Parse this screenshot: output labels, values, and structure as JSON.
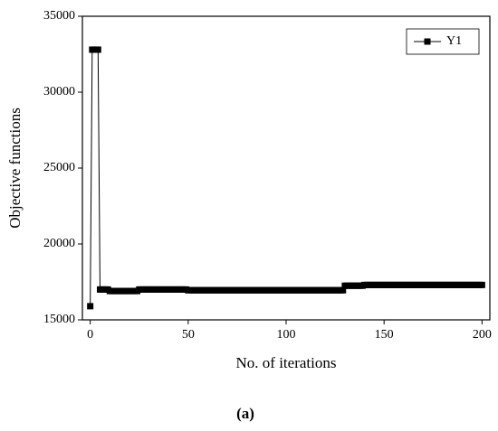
{
  "chart_data": {
    "type": "line",
    "xlabel": "No. of iterations",
    "ylabel": "Objective functions",
    "caption": "(a)",
    "xlim": [
      -4,
      204
    ],
    "ylim": [
      15000,
      35000
    ],
    "xticks": [
      0,
      50,
      100,
      150,
      200
    ],
    "yticks": [
      15000,
      20000,
      25000,
      30000,
      35000
    ],
    "legend": "upper right",
    "x": [
      0,
      1,
      2,
      3,
      4,
      5,
      6,
      7,
      8,
      9,
      10,
      11,
      12,
      13,
      14,
      15,
      16,
      17,
      18,
      19,
      20,
      21,
      22,
      23,
      24,
      25,
      26,
      27,
      28,
      29,
      30,
      31,
      32,
      33,
      34,
      35,
      36,
      37,
      38,
      39,
      40,
      41,
      42,
      43,
      44,
      45,
      46,
      47,
      48,
      49,
      50,
      51,
      52,
      53,
      54,
      55,
      56,
      57,
      58,
      59,
      60,
      61,
      62,
      63,
      64,
      65,
      66,
      67,
      68,
      69,
      70,
      71,
      72,
      73,
      74,
      75,
      76,
      77,
      78,
      79,
      80,
      81,
      82,
      83,
      84,
      85,
      86,
      87,
      88,
      89,
      90,
      91,
      92,
      93,
      94,
      95,
      96,
      97,
      98,
      99,
      100,
      101,
      102,
      103,
      104,
      105,
      106,
      107,
      108,
      109,
      110,
      111,
      112,
      113,
      114,
      115,
      116,
      117,
      118,
      119,
      120,
      121,
      122,
      123,
      124,
      125,
      126,
      127,
      128,
      129,
      130,
      131,
      132,
      133,
      134,
      135,
      136,
      137,
      138,
      139,
      140,
      141,
      142,
      143,
      144,
      145,
      146,
      147,
      148,
      149,
      150,
      151,
      152,
      153,
      154,
      155,
      156,
      157,
      158,
      159,
      160,
      161,
      162,
      163,
      164,
      165,
      166,
      167,
      168,
      169,
      170,
      171,
      172,
      173,
      174,
      175,
      176,
      177,
      178,
      179,
      180,
      181,
      182,
      183,
      184,
      185,
      186,
      187,
      188,
      189,
      190,
      191,
      192,
      193,
      194,
      195,
      196,
      197,
      198,
      199,
      200
    ],
    "series": [
      {
        "name": "Y1",
        "color": "#000000",
        "values": [
          15900,
          32800,
          32800,
          32800,
          32800,
          17000,
          17000,
          17000,
          17000,
          17000,
          16900,
          16900,
          16900,
          16900,
          16900,
          16900,
          16900,
          16900,
          16900,
          16900,
          16900,
          16900,
          16900,
          16900,
          16900,
          17000,
          17000,
          17000,
          17000,
          17000,
          17000,
          17000,
          17000,
          17000,
          17000,
          17000,
          17000,
          17000,
          17000,
          17000,
          17000,
          17000,
          17000,
          17000,
          17000,
          17000,
          17000,
          17000,
          17000,
          17000,
          16950,
          16950,
          16950,
          16950,
          16950,
          16950,
          16950,
          16950,
          16950,
          16950,
          16950,
          16950,
          16950,
          16950,
          16950,
          16950,
          16950,
          16950,
          16950,
          16950,
          16950,
          16950,
          16950,
          16950,
          16950,
          16950,
          16950,
          16950,
          16950,
          16950,
          16950,
          16950,
          16950,
          16950,
          16950,
          16950,
          16950,
          16950,
          16950,
          16950,
          16950,
          16950,
          16950,
          16950,
          16950,
          16950,
          16950,
          16950,
          16950,
          16950,
          16950,
          16950,
          16950,
          16950,
          16950,
          16950,
          16950,
          16950,
          16950,
          16950,
          16950,
          16950,
          16950,
          16950,
          16950,
          16950,
          16950,
          16950,
          16950,
          16950,
          16950,
          16950,
          16950,
          16950,
          16950,
          16950,
          16950,
          16950,
          16950,
          16950,
          17250,
          17250,
          17250,
          17250,
          17250,
          17250,
          17250,
          17250,
          17250,
          17250,
          17300,
          17300,
          17300,
          17300,
          17300,
          17300,
          17300,
          17300,
          17300,
          17300,
          17300,
          17300,
          17300,
          17300,
          17300,
          17300,
          17300,
          17300,
          17300,
          17300,
          17300,
          17300,
          17300,
          17300,
          17300,
          17300,
          17300,
          17300,
          17300,
          17300,
          17300,
          17300,
          17300,
          17300,
          17300,
          17300,
          17300,
          17300,
          17300,
          17300,
          17300,
          17300,
          17300,
          17300,
          17300,
          17300,
          17300,
          17300,
          17300,
          17300,
          17300,
          17300,
          17300,
          17300,
          17300,
          17300,
          17300,
          17300,
          17300,
          17300,
          17300
        ]
      }
    ]
  }
}
